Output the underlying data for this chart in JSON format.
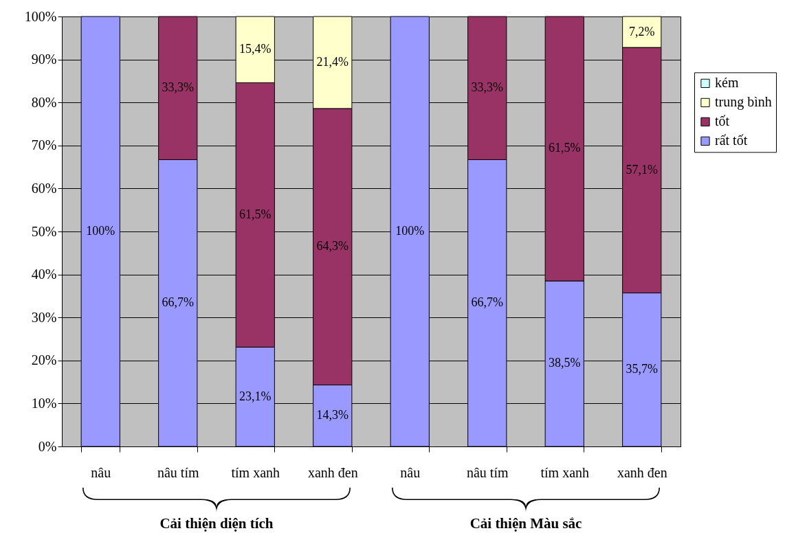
{
  "chart_data": {
    "type": "bar",
    "stacked": true,
    "categories": [
      "nâu",
      "nâu tím",
      "tím xanh",
      "xanh đen",
      "nâu",
      "nâu tím",
      "tím xanh",
      "xanh đen"
    ],
    "series": [
      {
        "name": "rất tốt",
        "color": "#9999ff",
        "values": [
          100,
          66.7,
          23.1,
          14.3,
          100,
          66.7,
          38.5,
          35.7
        ],
        "value_labels": [
          "100%",
          "66,7%",
          "23,1%",
          "14,3%",
          "100%",
          "66,7%",
          "38,5%",
          "35,7%"
        ]
      },
      {
        "name": "tốt",
        "color": "#993366",
        "values": [
          null,
          33.3,
          61.5,
          64.3,
          null,
          33.3,
          61.5,
          57.1
        ],
        "value_labels": [
          null,
          "33,3%",
          "61,5%",
          "64,3%",
          null,
          "33,3%",
          "61,5%",
          "57,1%"
        ]
      },
      {
        "name": "trung bình",
        "color": "#ffffcc",
        "values": [
          null,
          null,
          15.4,
          21.4,
          null,
          null,
          null,
          7.2
        ],
        "value_labels": [
          null,
          null,
          "15,4%",
          "21,4%",
          null,
          null,
          null,
          "7,2%"
        ]
      },
      {
        "name": "kém",
        "color": "#ccffff",
        "values": [
          null,
          null,
          null,
          null,
          null,
          null,
          null,
          null
        ]
      }
    ],
    "ylim": [
      0,
      100
    ],
    "yticks": [
      {
        "value": 0,
        "label": "0%"
      },
      {
        "value": 10,
        "label": "10%"
      },
      {
        "value": 20,
        "label": "20%"
      },
      {
        "value": 30,
        "label": "30%"
      },
      {
        "value": 40,
        "label": "40%"
      },
      {
        "value": 50,
        "label": "50%"
      },
      {
        "value": 60,
        "label": "60%"
      },
      {
        "value": 70,
        "label": "70%"
      },
      {
        "value": 80,
        "label": "80%"
      },
      {
        "value": 90,
        "label": "90%"
      },
      {
        "value": 100,
        "label": "100%"
      }
    ],
    "grid": "y",
    "legend": "right",
    "annotations": [
      "Cải thiện diện tích",
      "Cải thiện Màu sắc"
    ]
  }
}
